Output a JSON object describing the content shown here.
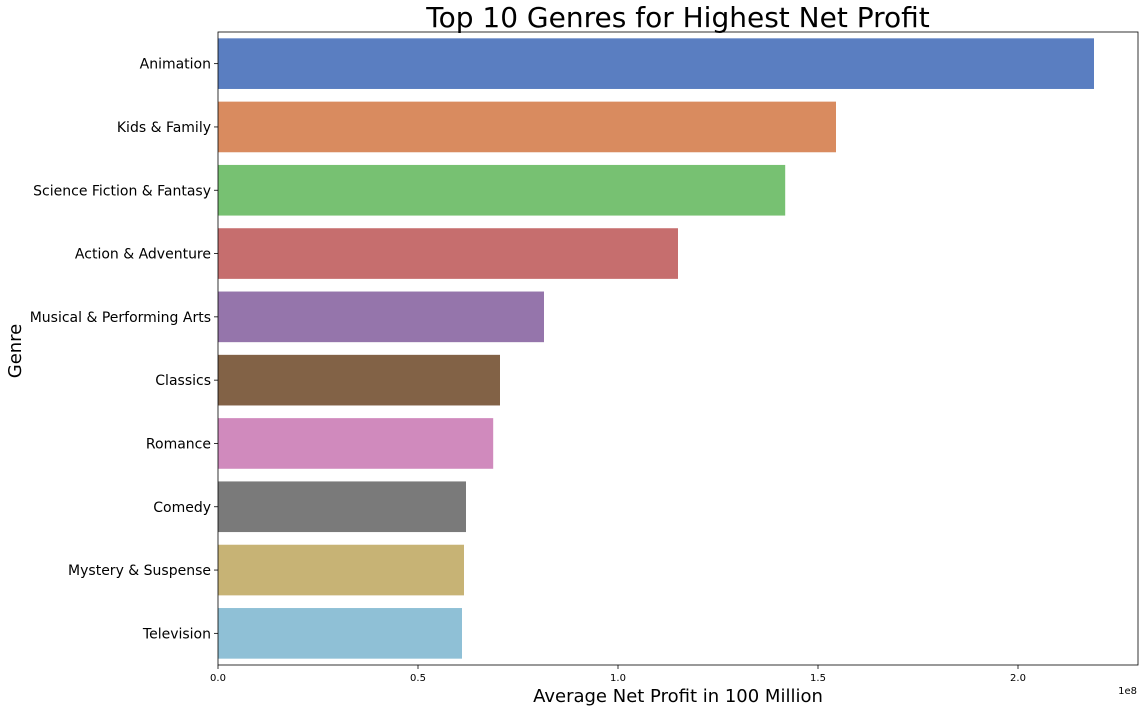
{
  "chart_data": {
    "type": "bar",
    "orientation": "horizontal",
    "title": "Top 10 Genres for Highest Net Profit",
    "xlabel": "Average Net Profit in 100 Million",
    "ylabel": "Genre",
    "x_offset_label": "1e8",
    "xlim": [
      0,
      230000000
    ],
    "xticks": [
      0,
      50000000,
      100000000,
      150000000,
      200000000
    ],
    "xtick_labels": [
      "0.0",
      "0.5",
      "1.0",
      "1.5",
      "2.0"
    ],
    "grid": false,
    "legend": "none",
    "categories": [
      "Animation",
      "Kids & Family",
      "Science Fiction & Fantasy",
      "Action & Adventure",
      "Musical & Performing Arts",
      "Classics",
      "Romance",
      "Comedy",
      "Mystery & Suspense",
      "Television"
    ],
    "values": [
      219000000,
      154500000,
      141800000,
      115000000,
      81500000,
      70500000,
      68800000,
      62000000,
      61500000,
      61000000
    ],
    "colors": [
      "#5a7ec1",
      "#d98b5f",
      "#77c172",
      "#c66e6e",
      "#9575ab",
      "#826246",
      "#d08abd",
      "#7a7a7a",
      "#c7b375",
      "#8fc0d6"
    ]
  }
}
